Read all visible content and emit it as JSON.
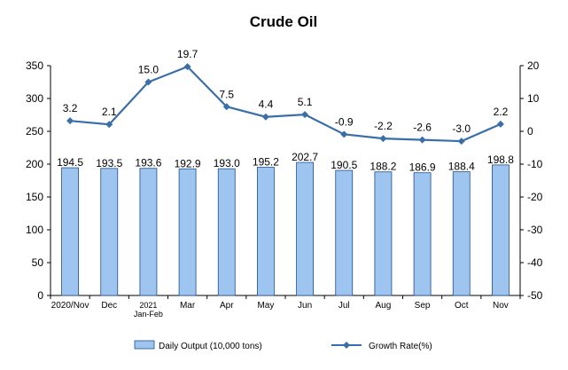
{
  "chart_data": {
    "type": "bar",
    "title": "Crude Oil",
    "categories": [
      [
        "2020/Nov"
      ],
      [
        "Dec"
      ],
      [
        "2021",
        "Jan-Feb"
      ],
      [
        "Mar"
      ],
      [
        "Apr"
      ],
      [
        "May"
      ],
      [
        "Jun"
      ],
      [
        "Jul"
      ],
      [
        "Aug"
      ],
      [
        "Sep"
      ],
      [
        "Oct"
      ],
      [
        "Nov"
      ]
    ],
    "series": [
      {
        "name": "Daily Output (10,000 tons)",
        "type": "bar",
        "axis": "left",
        "color": "#9ec5f0",
        "values": [
          194.5,
          193.5,
          193.6,
          192.9,
          193.0,
          195.2,
          202.7,
          190.5,
          188.2,
          186.9,
          188.4,
          198.8
        ],
        "labels": [
          "194.5",
          "193.5",
          "193.6",
          "192.9",
          "193.0",
          "195.2",
          "202.7",
          "190.5",
          "188.2",
          "186.9",
          "188.4",
          "198.8"
        ]
      },
      {
        "name": "Growth Rate(%)",
        "type": "line",
        "axis": "right",
        "color": "#3a6ea8",
        "marker": "diamond",
        "values": [
          3.2,
          2.1,
          15.0,
          19.7,
          7.5,
          4.4,
          5.1,
          -0.9,
          -2.2,
          -2.6,
          -3.0,
          2.2
        ],
        "labels": [
          "3.2",
          "2.1",
          "15.0",
          "19.7",
          "7.5",
          "4.4",
          "5.1",
          "-0.9",
          "-2.2",
          "-2.6",
          "-3.0",
          "2.2"
        ]
      }
    ],
    "ylim_left": [
      0,
      350
    ],
    "yticks_left": [
      "0",
      "50",
      "100",
      "150",
      "200",
      "250",
      "300",
      "350"
    ],
    "ylim_right": [
      -50,
      20
    ],
    "yticks_right": [
      "-50",
      "-40",
      "-30",
      "-20",
      "-10",
      "0",
      "10",
      "20"
    ],
    "grid": false,
    "legend_position": "bottom"
  }
}
